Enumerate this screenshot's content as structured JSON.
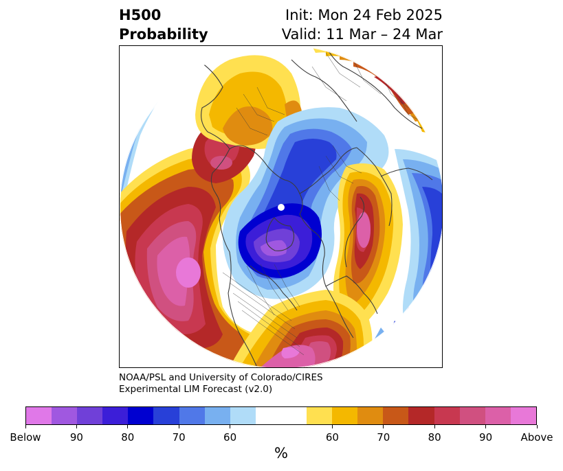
{
  "title": {
    "left_line1": "H500",
    "left_line2": "Probability",
    "right_line1": "Init: Mon 24 Feb 2025",
    "right_line2": "Valid: 11 Mar – 24 Mar"
  },
  "credit": {
    "line1": "NOAA/PSL and University of Colorado/CIRES",
    "line2": "Experimental LIM Forecast (v2.0)"
  },
  "colorbar": {
    "unit": "%",
    "colors": [
      "#e078e8",
      "#a058e0",
      "#7040d8",
      "#3c1ed8",
      "#0000d0",
      "#2840d8",
      "#5078e8",
      "#78b0f0",
      "#b0dcf8",
      "#ffffff",
      "#ffffff",
      "#ffe050",
      "#f4b800",
      "#e08c10",
      "#c85818",
      "#b42828",
      "#c83850",
      "#d05080",
      "#dc60a8",
      "#e878d8"
    ],
    "tick_labels": [
      "Below",
      "90",
      "80",
      "70",
      "60",
      "60",
      "70",
      "80",
      "90",
      "Above"
    ]
  },
  "map": {
    "projection": "north-polar-stereographic",
    "features": [
      "coastlines",
      "country-borders",
      "state-borders"
    ]
  }
}
